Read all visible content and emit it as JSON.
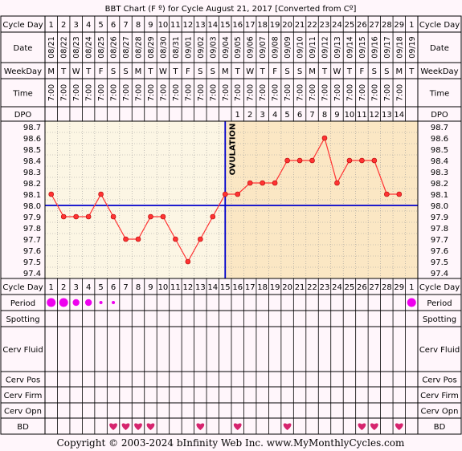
{
  "title": "BBT Chart (F º) for Cycle August 21, 2017  [Converted from Cº]",
  "labels": {
    "cycle_day": "Cycle Day",
    "date": "Date",
    "weekday": "WeekDay",
    "time": "Time",
    "dpo": "DPO",
    "period": "Period",
    "spotting": "Spotting",
    "cerv_fluid": "Cerv Fluid",
    "cerv_pos": "Cerv Pos",
    "cerv_firm": "Cerv Firm",
    "cerv_opn": "Cerv Opn",
    "bd": "BD",
    "ovulation": "OVULATION"
  },
  "columns": {
    "cycle_days": [
      "1",
      "2",
      "3",
      "4",
      "5",
      "6",
      "7",
      "8",
      "9",
      "10",
      "11",
      "12",
      "13",
      "14",
      "15",
      "16",
      "17",
      "18",
      "19",
      "20",
      "21",
      "22",
      "23",
      "24",
      "25",
      "26",
      "27",
      "28",
      "29",
      "1"
    ],
    "dates": [
      "08/21",
      "08/22",
      "08/23",
      "08/24",
      "08/25",
      "08/26",
      "08/27",
      "08/28",
      "08/29",
      "08/30",
      "08/31",
      "09/01",
      "09/02",
      "09/03",
      "09/04",
      "09/05",
      "09/06",
      "09/07",
      "09/08",
      "09/09",
      "09/10",
      "09/11",
      "09/12",
      "09/13",
      "09/14",
      "09/15",
      "09/16",
      "09/17",
      "09/18",
      "09/19"
    ],
    "weekdays": [
      "M",
      "T",
      "W",
      "T",
      "F",
      "S",
      "S",
      "M",
      "T",
      "W",
      "T",
      "F",
      "S",
      "S",
      "M",
      "T",
      "W",
      "T",
      "F",
      "S",
      "S",
      "M",
      "T",
      "W",
      "T",
      "F",
      "S",
      "S",
      "M",
      "T"
    ],
    "times": [
      "7:00",
      "7:00",
      "7:00",
      "7:00",
      "7:00",
      "7:00",
      "7:00",
      "7:00",
      "7:00",
      "7:00",
      "7:00",
      "7:00",
      "7:00",
      "7:00",
      "7:00",
      "7:00",
      "7:00",
      "7:00",
      "7:00",
      "7:00",
      "7:00",
      "7:00",
      "7:00",
      "7:00",
      "7:00",
      "7:00",
      "7:00",
      "7:00",
      "7:00",
      ""
    ],
    "dpo": [
      "",
      "",
      "",
      "",
      "",
      "",
      "",
      "",
      "",
      "",
      "",
      "",
      "",
      "",
      "",
      "1",
      "2",
      "3",
      "4",
      "5",
      "6",
      "7",
      "8",
      "9",
      "10",
      "11",
      "12",
      "13",
      "14",
      ""
    ]
  },
  "chart_data": {
    "type": "line",
    "title": "BBT Chart (F º) for Cycle August 21, 2017  [Converted from Cº]",
    "x": [
      1,
      2,
      3,
      4,
      5,
      6,
      7,
      8,
      9,
      10,
      11,
      12,
      13,
      14,
      15,
      16,
      17,
      18,
      19,
      20,
      21,
      22,
      23,
      24,
      25,
      26,
      27,
      28,
      29
    ],
    "y": [
      98.1,
      97.9,
      97.9,
      97.9,
      98.1,
      97.9,
      97.7,
      97.7,
      97.9,
      97.9,
      97.7,
      97.5,
      97.7,
      97.9,
      98.1,
      98.1,
      98.2,
      98.2,
      98.2,
      98.4,
      98.4,
      98.4,
      98.6,
      98.2,
      98.4,
      98.4,
      98.4,
      98.1,
      98.1
    ],
    "y_ticks": [
      "98.7",
      "98.6",
      "98.5",
      "98.4",
      "98.3",
      "98.2",
      "98.1",
      "98.0",
      "97.9",
      "97.8",
      "97.7",
      "97.6",
      "97.5",
      "97.4"
    ],
    "ylim": [
      97.4,
      98.7
    ],
    "coverline": 98.0,
    "ovulation_day": 15,
    "grid": true,
    "colors": {
      "line": "#ff3333",
      "coverline": "#0000cc",
      "pre_ovulation": "#fcf6e4",
      "post_ovulation": "#fbe7c4"
    }
  },
  "period": [
    {
      "col": 1,
      "size": "large"
    },
    {
      "col": 2,
      "size": "large"
    },
    {
      "col": 3,
      "size": "medium"
    },
    {
      "col": 4,
      "size": "medium"
    },
    {
      "col": 5,
      "size": "small"
    },
    {
      "col": 6,
      "size": "small"
    },
    {
      "col": 30,
      "size": "large"
    }
  ],
  "bd_days": [
    6,
    7,
    8,
    9,
    13,
    16,
    20,
    26,
    27,
    29
  ],
  "colors": {
    "period": "#ee00ee",
    "heart": "#d6246e",
    "border": "#000000",
    "background": "#fff6fb"
  },
  "copyright": "Copyright © 2003-2024 bInfinity Web Inc.    www.MyMonthlyCycles.com"
}
